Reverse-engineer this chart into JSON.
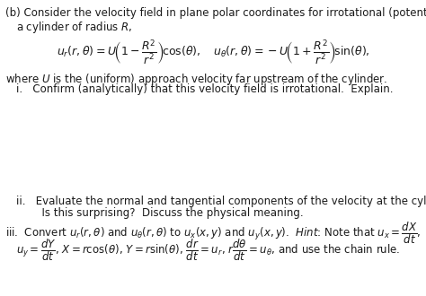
{
  "bg_color": "#ffffff",
  "text_color": "#1a1a1a",
  "divider_color": "#c8c8c8",
  "fs": 8.5,
  "line_b1": "(b) Consider the velocity field in plane polar coordinates for irrotational (potential) flow past",
  "line_b2": "a cylinder of radius $R$,",
  "line_eq": "$u_r(r,\\theta) = U\\!\\left(1 - \\dfrac{R^2}{r^2}\\right)\\!\\cos(\\theta), \\quad u_\\theta(r,\\theta) = -U\\!\\left(1 + \\dfrac{R^2}{r^2}\\right)\\!\\sin(\\theta),$",
  "line_where": "where $U$ is the (uniform) approach velocity far upstream of the cylinder.",
  "line_i": "i.   Confirm (analytically) that this velocity field is irrotational.  Explain.",
  "line_ii1": "ii.   Evaluate the normal and tangential components of the velocity at the cylinder surface.",
  "line_ii2": "      Is this surprising?  Discuss the physical meaning.",
  "line_iii1": "iii.  Convert $u_r(r,\\theta)$ and $u_\\theta(r,\\theta)$ to $u_x(x,y)$ and $u_y(x,y)$.  $\\mathit{Hint}$: Note that $u_x = \\dfrac{dX}{dt}$,",
  "line_iii2": "$u_y = \\dfrac{dY}{dt}$, $X = r\\cos(\\theta)$, $Y = r\\sin(\\theta)$, $\\dfrac{dr}{dt} = u_r$, $r\\dfrac{d\\theta}{dt} = u_\\theta$, and use the chain rule."
}
